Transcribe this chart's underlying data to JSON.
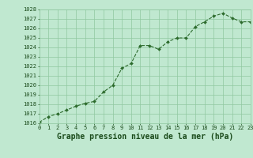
{
  "x": [
    0,
    1,
    2,
    3,
    4,
    5,
    6,
    7,
    8,
    9,
    10,
    11,
    12,
    13,
    14,
    15,
    16,
    17,
    18,
    19,
    20,
    21,
    22,
    23
  ],
  "y": [
    1016.1,
    1016.7,
    1017.0,
    1017.4,
    1017.8,
    1018.1,
    1018.3,
    1019.3,
    1020.0,
    1021.8,
    1022.3,
    1024.2,
    1024.2,
    1023.8,
    1024.6,
    1025.0,
    1025.0,
    1026.2,
    1026.7,
    1027.3,
    1027.6,
    1027.1,
    1026.7,
    1026.7
  ],
  "line_color": "#2d6b2d",
  "marker_color": "#2d6b2d",
  "bg_color": "#c0e8d0",
  "grid_color": "#90c8a0",
  "text_color": "#1a4a1a",
  "ylim": [
    1016,
    1028
  ],
  "xlim": [
    0,
    23
  ],
  "yticks": [
    1016,
    1017,
    1018,
    1019,
    1020,
    1021,
    1022,
    1023,
    1024,
    1025,
    1026,
    1027,
    1028
  ],
  "xticks": [
    0,
    1,
    2,
    3,
    4,
    5,
    6,
    7,
    8,
    9,
    10,
    11,
    12,
    13,
    14,
    15,
    16,
    17,
    18,
    19,
    20,
    21,
    22,
    23
  ],
  "xlabel": "Graphe pression niveau de la mer (hPa)",
  "tick_fontsize": 5.0,
  "label_fontsize": 7.0
}
